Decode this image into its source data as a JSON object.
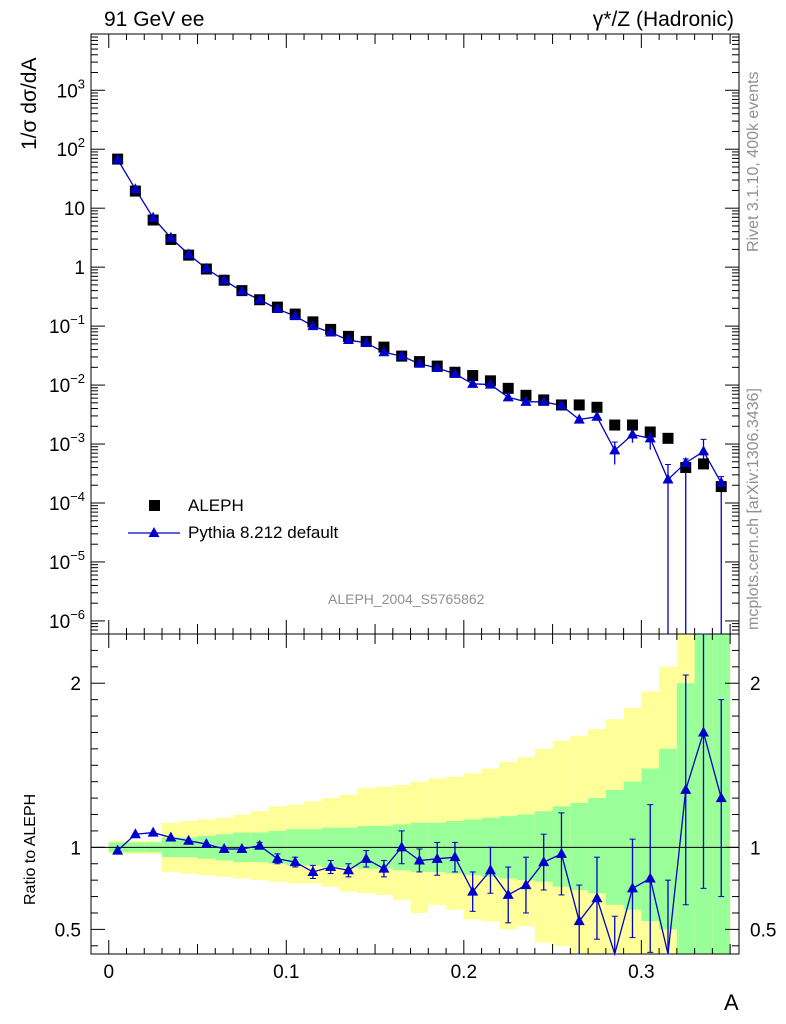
{
  "header": {
    "left": "91 GeV ee",
    "right": "γ*/Z (Hadronic)"
  },
  "side": {
    "rivet": "Rivet 3.1.10,  400k events",
    "mcplots": "mcplots.cern.ch [arXiv:1306.3436]"
  },
  "legend": {
    "data_label": "ALEPH",
    "mc_label": "Pythia 8.212 default"
  },
  "colors": {
    "data": "#000000",
    "mc": "#0000cc",
    "band_inner": "#99ff99",
    "band_outer": "#ffff99"
  },
  "chart_data": [
    {
      "type": "scatter",
      "title": "",
      "annotation": "ALEPH_2004_S5765862",
      "ylabel": "1/σ  dσ/dA",
      "xlabel": "A",
      "yscale": "log",
      "xlim": [
        -0.01,
        0.355
      ],
      "ylim": [
        6e-07,
        9000
      ],
      "y_ticks": [
        "10^-6",
        "10^-5",
        "10^-4",
        "10^-3",
        "10^-2",
        "10^-1",
        "1",
        "10",
        "10^2",
        "10^3"
      ],
      "legend_position": "lower-left",
      "series": [
        {
          "name": "ALEPH",
          "marker": "square",
          "x": [
            0.005,
            0.015,
            0.025,
            0.035,
            0.045,
            0.055,
            0.065,
            0.075,
            0.085,
            0.095,
            0.105,
            0.115,
            0.125,
            0.135,
            0.145,
            0.155,
            0.165,
            0.175,
            0.185,
            0.195,
            0.205,
            0.215,
            0.225,
            0.235,
            0.245,
            0.255,
            0.265,
            0.275,
            0.285,
            0.295,
            0.305,
            0.315,
            0.325,
            0.335,
            0.345
          ],
          "y": [
            68,
            19.5,
            6.3,
            2.95,
            1.6,
            0.93,
            0.6,
            0.4,
            0.28,
            0.21,
            0.16,
            0.118,
            0.088,
            0.067,
            0.055,
            0.044,
            0.031,
            0.025,
            0.021,
            0.0165,
            0.0145,
            0.0118,
            0.0088,
            0.0067,
            0.0056,
            0.0046,
            0.0046,
            0.0042,
            0.0021,
            0.0021,
            0.0016,
            0.00125,
            0.0004,
            0.00046,
            0.00019
          ]
        },
        {
          "name": "Pythia 8.212 default",
          "marker": "triangle",
          "x": [
            0.005,
            0.015,
            0.025,
            0.035,
            0.045,
            0.055,
            0.065,
            0.075,
            0.085,
            0.095,
            0.105,
            0.115,
            0.125,
            0.135,
            0.145,
            0.155,
            0.165,
            0.175,
            0.185,
            0.195,
            0.205,
            0.215,
            0.225,
            0.235,
            0.245,
            0.255,
            0.265,
            0.275,
            0.285,
            0.295,
            0.305,
            0.315,
            0.325,
            0.335,
            0.345
          ],
          "y": [
            67,
            21,
            6.9,
            3.15,
            1.65,
            0.94,
            0.6,
            0.39,
            0.28,
            0.195,
            0.148,
            0.1,
            0.078,
            0.058,
            0.052,
            0.036,
            0.031,
            0.023,
            0.0195,
            0.0155,
            0.0105,
            0.0102,
            0.0062,
            0.0052,
            0.0052,
            0.0045,
            0.0026,
            0.0029,
            0.00078,
            0.00145,
            0.00125,
            0.00025,
            0.00048,
            0.00075,
            0.00022
          ],
          "err_low": [
            0,
            0,
            0,
            0,
            0,
            0,
            0,
            0,
            0,
            0,
            0,
            0,
            0,
            0,
            0,
            0,
            0,
            0,
            0,
            0,
            0,
            0,
            0,
            0,
            0,
            0,
            0,
            0,
            0.00033,
            0.0004,
            0.00045,
            0.00025,
            0.00048,
            0.00035,
            0.00022
          ],
          "err_high": [
            0,
            0,
            0,
            0,
            0,
            0,
            0,
            0,
            0,
            0,
            0,
            0,
            0,
            0,
            0,
            0,
            0,
            0,
            0,
            0,
            0,
            0,
            0,
            0,
            0,
            0,
            0,
            0,
            0.0003,
            0.00035,
            0.0004,
            0.0002,
            8e-05,
            0.00045,
            6e-05
          ]
        }
      ]
    },
    {
      "type": "line",
      "ylabel": "Ratio to ALEPH",
      "xlabel": "A",
      "xlim": [
        -0.01,
        0.355
      ],
      "ylim": [
        0.35,
        2.3
      ],
      "y_ticks": [
        0.5,
        1,
        2
      ],
      "x_ticks": [
        0,
        0.1,
        0.2,
        0.3
      ],
      "reference_line": 1,
      "series": [
        {
          "name": "Pythia 8.212 default",
          "x": [
            0.005,
            0.015,
            0.025,
            0.035,
            0.045,
            0.055,
            0.065,
            0.075,
            0.085,
            0.095,
            0.105,
            0.115,
            0.125,
            0.135,
            0.145,
            0.155,
            0.165,
            0.175,
            0.185,
            0.195,
            0.205,
            0.215,
            0.225,
            0.235,
            0.245,
            0.255,
            0.265,
            0.275,
            0.285,
            0.295,
            0.305,
            0.315,
            0.325,
            0.335,
            0.345
          ],
          "y": [
            0.98,
            1.08,
            1.09,
            1.06,
            1.04,
            1.02,
            0.99,
            0.99,
            1.01,
            0.93,
            0.91,
            0.85,
            0.88,
            0.86,
            0.93,
            0.87,
            1.0,
            0.92,
            0.93,
            0.94,
            0.73,
            0.86,
            0.71,
            0.77,
            0.91,
            0.96,
            0.55,
            0.69,
            0.33,
            0.75,
            0.81,
            0.2,
            1.35,
            1.7,
            1.3
          ],
          "err": [
            0,
            0,
            0,
            0,
            0,
            0,
            0,
            0,
            0.02,
            0.03,
            0.03,
            0.04,
            0.04,
            0.04,
            0.05,
            0.05,
            0.1,
            0.07,
            0.1,
            0.09,
            0.12,
            0.14,
            0.17,
            0.17,
            0.17,
            0.25,
            0.22,
            0.25,
            0.25,
            0.3,
            0.45,
            0.6,
            0.7,
            0.95,
            0.6
          ]
        },
        {
          "name": "band",
          "x_edges": [
            0,
            0.01,
            0.02,
            0.03,
            0.04,
            0.05,
            0.06,
            0.07,
            0.08,
            0.09,
            0.1,
            0.11,
            0.12,
            0.13,
            0.14,
            0.15,
            0.16,
            0.17,
            0.18,
            0.19,
            0.2,
            0.21,
            0.22,
            0.23,
            0.24,
            0.25,
            0.26,
            0.27,
            0.28,
            0.29,
            0.3,
            0.31,
            0.32,
            0.33,
            0.34,
            0.35
          ],
          "inner_lo": [
            0.97,
            0.97,
            0.97,
            0.94,
            0.94,
            0.93,
            0.92,
            0.91,
            0.91,
            0.9,
            0.89,
            0.89,
            0.88,
            0.88,
            0.87,
            0.87,
            0.86,
            0.85,
            0.85,
            0.84,
            0.83,
            0.82,
            0.81,
            0.8,
            0.79,
            0.76,
            0.74,
            0.72,
            0.65,
            0.62,
            0.55,
            0.5,
            0.3,
            0.3,
            0.3
          ],
          "inner_hi": [
            1.03,
            1.03,
            1.03,
            1.06,
            1.06,
            1.07,
            1.08,
            1.09,
            1.09,
            1.1,
            1.11,
            1.11,
            1.12,
            1.12,
            1.13,
            1.13,
            1.14,
            1.15,
            1.15,
            1.16,
            1.17,
            1.18,
            1.19,
            1.2,
            1.22,
            1.25,
            1.27,
            1.3,
            1.35,
            1.4,
            1.48,
            1.6,
            2.0,
            2.4,
            2.4
          ],
          "outer_lo": [
            0.96,
            0.96,
            0.96,
            0.85,
            0.84,
            0.83,
            0.82,
            0.81,
            0.8,
            0.79,
            0.78,
            0.78,
            0.76,
            0.73,
            0.72,
            0.71,
            0.68,
            0.6,
            0.65,
            0.62,
            0.56,
            0.55,
            0.5,
            0.52,
            0.42,
            0.4,
            0.3,
            0.3,
            0.3,
            0.3,
            0.3,
            0.3,
            0.3,
            0.3,
            0.3
          ],
          "outer_hi": [
            1.04,
            1.04,
            1.04,
            1.15,
            1.16,
            1.17,
            1.18,
            1.2,
            1.22,
            1.25,
            1.26,
            1.28,
            1.3,
            1.32,
            1.36,
            1.37,
            1.38,
            1.4,
            1.42,
            1.43,
            1.45,
            1.48,
            1.52,
            1.55,
            1.6,
            1.65,
            1.68,
            1.72,
            1.78,
            1.85,
            1.95,
            2.1,
            2.4,
            2.4,
            2.4
          ]
        }
      ]
    }
  ]
}
